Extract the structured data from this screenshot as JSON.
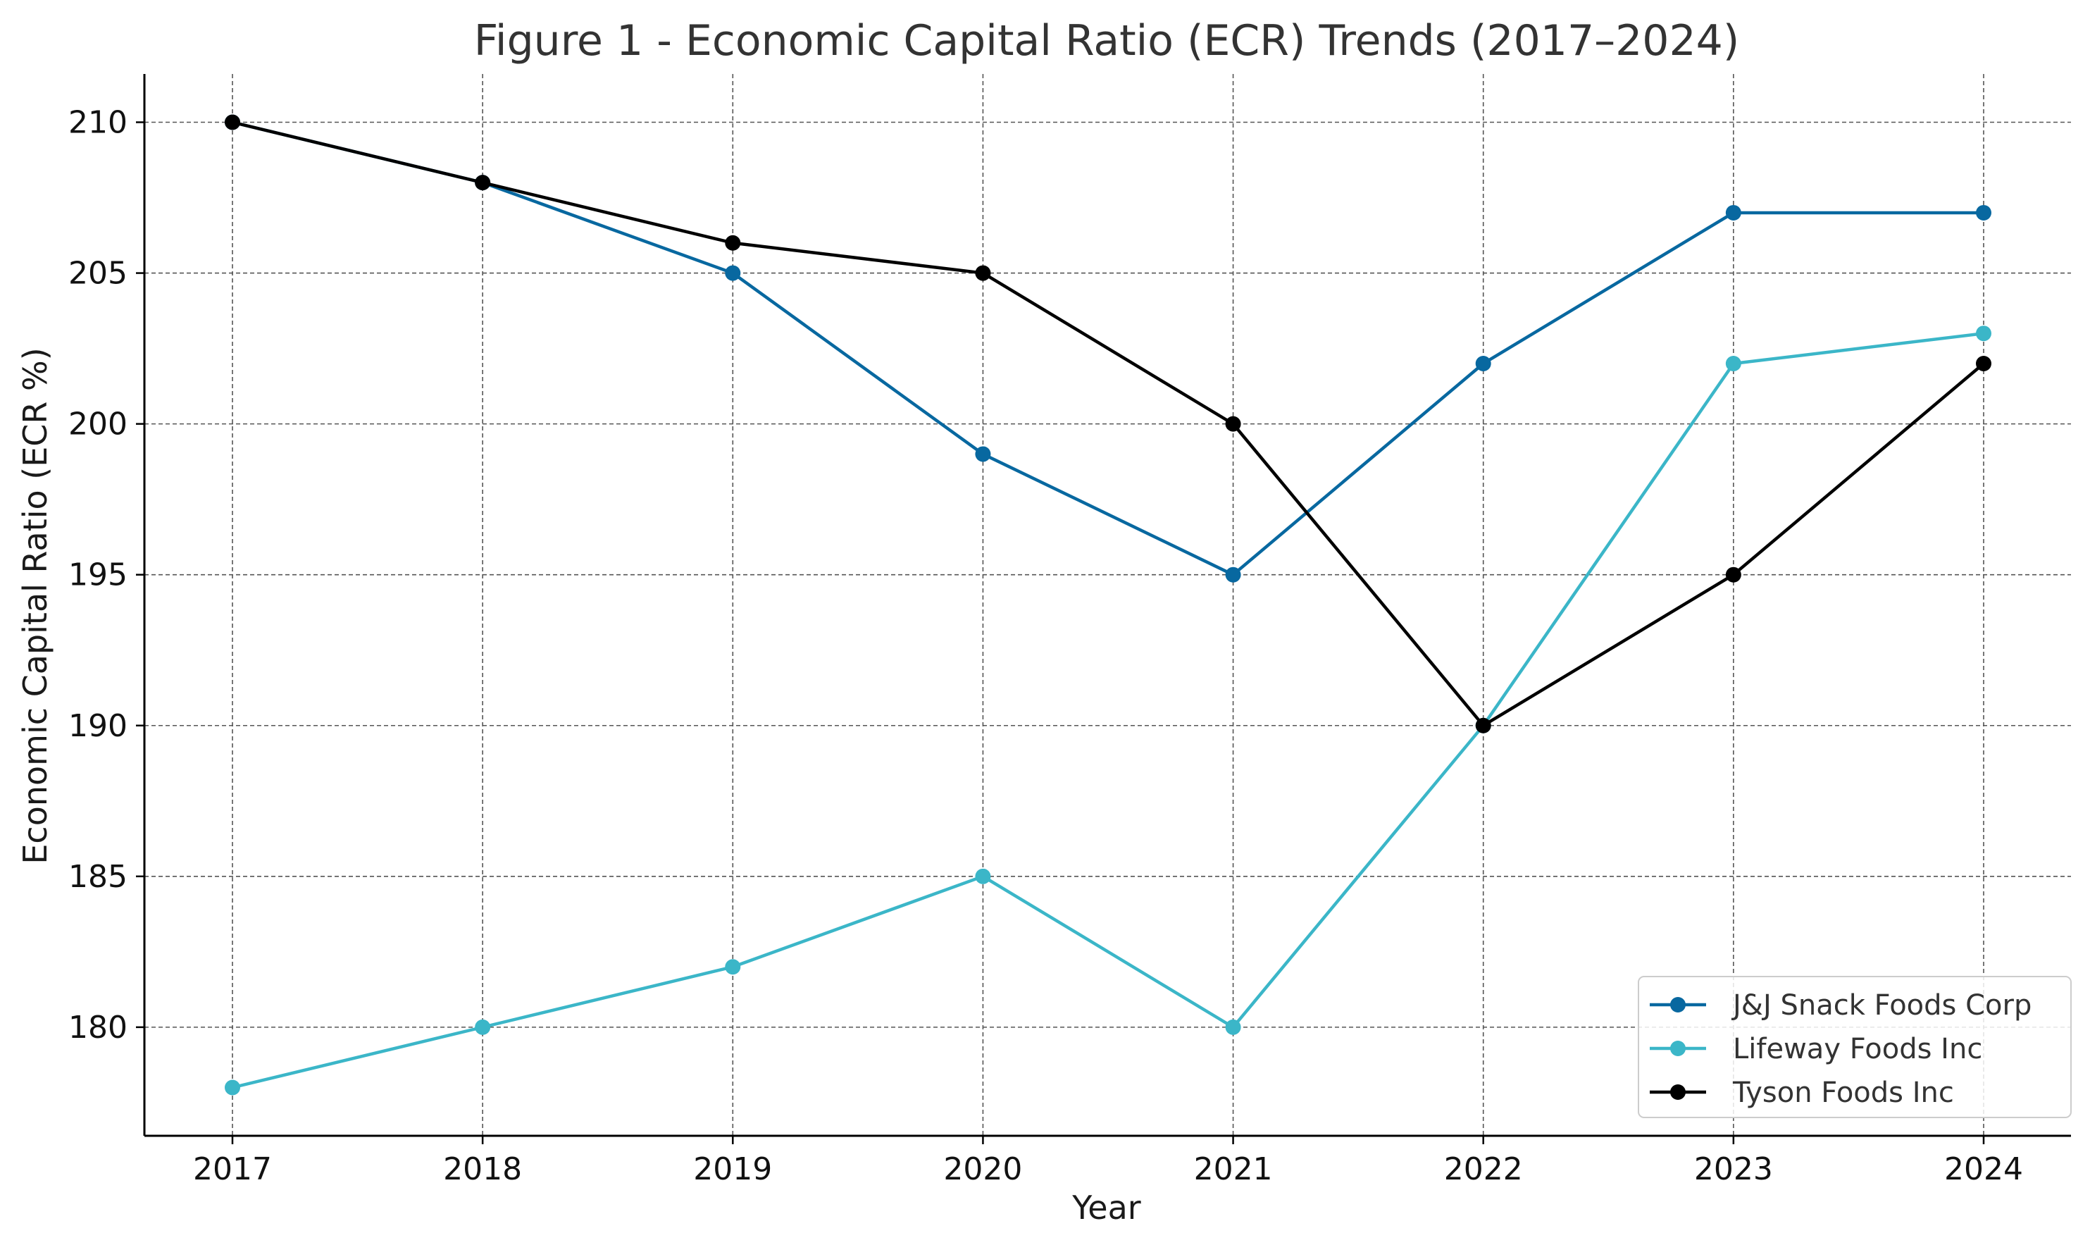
{
  "chart_data": {
    "type": "line",
    "title": "Figure 1 - Economic Capital Ratio (ECR) Trends (2017–2024)",
    "xlabel": "Year",
    "ylabel": "Economic Capital Ratio (ECR %)",
    "categories": [
      "2017",
      "2018",
      "2019",
      "2020",
      "2021",
      "2022",
      "2023",
      "2024"
    ],
    "y_ticks": [
      "180",
      "185",
      "190",
      "195",
      "200",
      "205",
      "210"
    ],
    "ylim": [
      176.4,
      211.6
    ],
    "grid": true,
    "grid_style": "dashed",
    "legend_position": "lower right",
    "series": [
      {
        "name": "J&J Snack Foods Corp",
        "color": "#0868a0",
        "values": [
          210,
          208,
          205,
          199,
          195,
          202,
          207,
          207
        ]
      },
      {
        "name": "Lifeway Foods Inc",
        "color": "#3bb6c8",
        "values": [
          178,
          180,
          182,
          185,
          180,
          190,
          202,
          203
        ]
      },
      {
        "name": "Tyson Foods Inc",
        "color": "#000000",
        "values": [
          210,
          208,
          206,
          205,
          200,
          190,
          195,
          202
        ]
      }
    ]
  }
}
